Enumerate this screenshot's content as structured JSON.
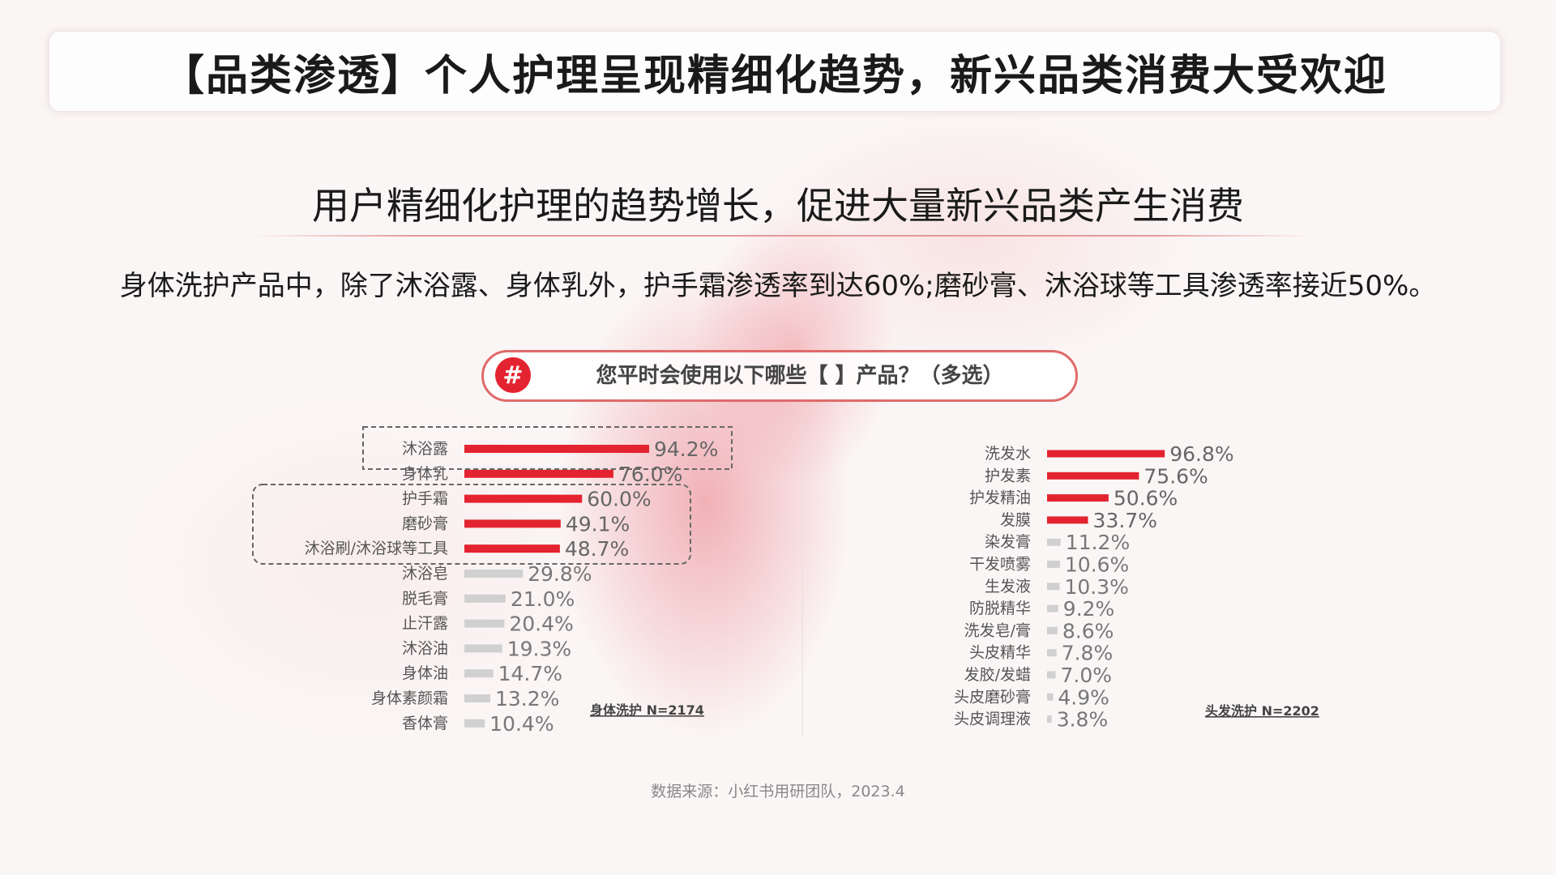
{
  "title": "【品类渗透】个人护理呈现精细化趋势，新兴品类消费大受欢迎",
  "subtitle": "用户精细化护理的趋势增长，促进大量新兴品类产生消费",
  "description": "身体洗护产品中，除了沐浴露、身体乳外，护手霜渗透率到达60%;磨砂膏、沐浴球等工具渗透率接近50%。",
  "question": {
    "icon": "hash-icon",
    "icon_glyph": "#",
    "text": "您平时会使用以下哪些【 】产品？（多选）"
  },
  "source": "数据来源：小红书用研团队，2023.4",
  "colors": {
    "highlight": "#e3232f",
    "muted": "#d0d0d0",
    "accent_border": "#e06a6a"
  },
  "chart_data": [
    {
      "type": "bar",
      "orientation": "horizontal",
      "categories": [
        "沐浴露",
        "身体乳",
        "护手霜",
        "磨砂膏",
        "沐浴刷/沐浴球等工具",
        "沐浴皂",
        "脱毛膏",
        "止汗露",
        "沐浴油",
        "身体油",
        "身体素颜霜",
        "香体膏"
      ],
      "values": [
        94.2,
        76.0,
        60.0,
        49.1,
        48.7,
        29.8,
        21.0,
        20.4,
        19.3,
        14.7,
        13.2,
        10.4
      ],
      "value_labels": [
        "94.2%",
        "76.0%",
        "60.0%",
        "49.1%",
        "48.7%",
        "29.8%",
        "21.0%",
        "20.4%",
        "19.3%",
        "14.7%",
        "13.2%",
        "10.4%"
      ],
      "highlighted": [
        true,
        true,
        true,
        true,
        true,
        false,
        false,
        false,
        false,
        false,
        false,
        false
      ],
      "sample_label": "身体洗护 N=2174",
      "unit": "%"
    },
    {
      "type": "bar",
      "orientation": "horizontal",
      "categories": [
        "洗发水",
        "护发素",
        "护发精油",
        "发膜",
        "染发膏",
        "干发喷雾",
        "生发液",
        "防脱精华",
        "洗发皂/膏",
        "头皮精华",
        "发胶/发蜡",
        "头皮磨砂膏",
        "头皮调理液"
      ],
      "values": [
        96.8,
        75.6,
        50.6,
        33.7,
        11.2,
        10.6,
        10.3,
        9.2,
        8.6,
        7.8,
        7.0,
        4.9,
        3.8
      ],
      "value_labels": [
        "96.8%",
        "75.6%",
        "50.6%",
        "33.7%",
        "11.2%",
        "10.6%",
        "10.3%",
        "9.2%",
        "8.6%",
        "7.8%",
        "7.0%",
        "4.9%",
        "3.8%"
      ],
      "highlighted": [
        true,
        true,
        true,
        true,
        false,
        false,
        false,
        false,
        false,
        false,
        false,
        false,
        false
      ],
      "sample_label": "头发洗护 N=2202",
      "unit": "%"
    }
  ]
}
